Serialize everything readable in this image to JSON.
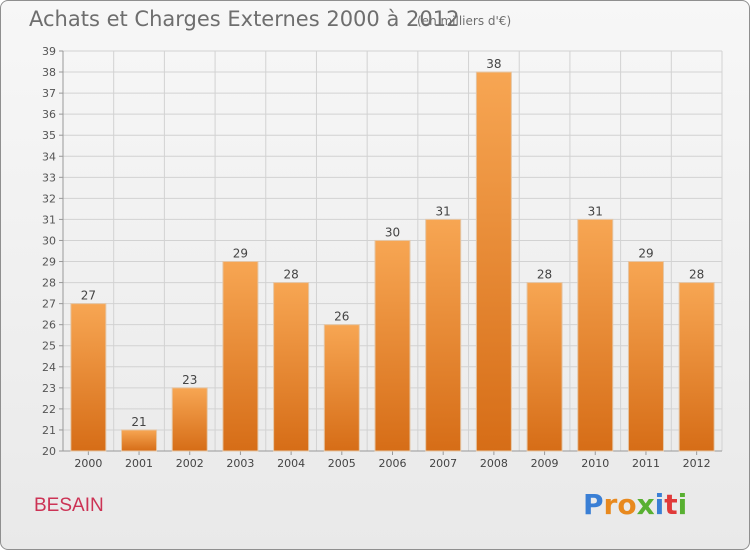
{
  "chart_title": "Achats et Charges Externes 2000 à 2012",
  "chart_unit": "(en milliers d'€)",
  "place_name": "BESAIN",
  "brand": {
    "letters": [
      "P",
      "r",
      "o",
      "x",
      "i",
      "t",
      "i"
    ],
    "colors": [
      "#3a7fd5",
      "#e8891e",
      "#e8891e",
      "#58b031",
      "#3a7fd5",
      "#e03a3a",
      "#58b031"
    ]
  },
  "chart_data": {
    "type": "bar",
    "categories": [
      "2000",
      "2001",
      "2002",
      "2003",
      "2004",
      "2005",
      "2006",
      "2007",
      "2008",
      "2009",
      "2010",
      "2011",
      "2012"
    ],
    "values": [
      27,
      21,
      23,
      29,
      28,
      26,
      30,
      31,
      38,
      28,
      31,
      29,
      28
    ],
    "ylim": [
      20,
      39
    ],
    "yticks": [
      20,
      21,
      22,
      23,
      24,
      25,
      26,
      27,
      28,
      29,
      30,
      31,
      32,
      33,
      34,
      35,
      36,
      37,
      38,
      39
    ],
    "grid": true,
    "bar_color": "#f09a3e",
    "data_labels": true
  }
}
